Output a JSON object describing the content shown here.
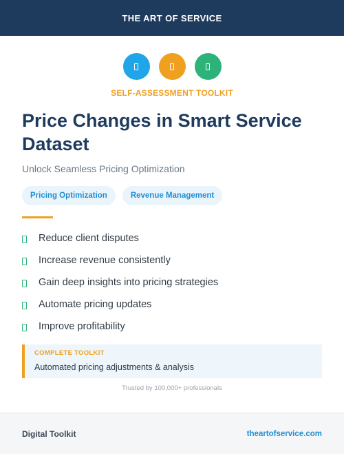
{
  "header": {
    "brand": "THE ART OF SERVICE"
  },
  "icons": [
    {
      "name": "blue-icon",
      "color": "#1fa5e8"
    },
    {
      "name": "orange-icon",
      "color": "#f0a020"
    },
    {
      "name": "green-icon",
      "color": "#2db37a"
    }
  ],
  "eyebrow": "SELF-ASSESSMENT TOOLKIT",
  "title": "Price Changes in Smart Service Dataset",
  "subtitle": "Unlock Seamless Pricing Optimization",
  "tags": [
    "Pricing Optimization",
    "Revenue Management"
  ],
  "features": [
    "Reduce client disputes",
    "Increase revenue consistently",
    "Gain deep insights into pricing strategies",
    "Automate pricing updates",
    "Improve profitability"
  ],
  "callout": {
    "label": "COMPLETE TOOLKIT",
    "text": "Automated pricing adjustments & analysis"
  },
  "trust": "Trusted by 100,000+ professionals",
  "footer": {
    "left": "Digital Toolkit",
    "right": "theartofservice.com"
  }
}
